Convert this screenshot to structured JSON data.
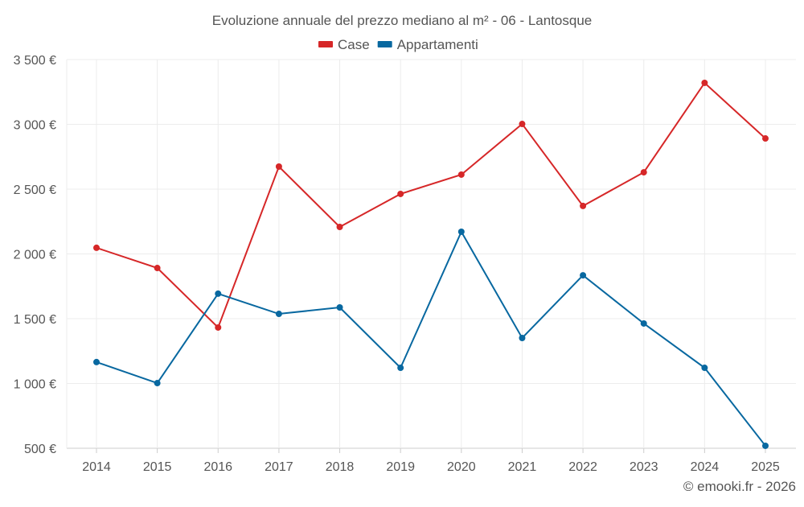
{
  "chart_data": {
    "type": "line",
    "title": "Evoluzione annuale del prezzo mediano al m² - 06 - Lantosque",
    "xlabel": "",
    "ylabel": "",
    "categories": [
      "2014",
      "2015",
      "2016",
      "2017",
      "2018",
      "2019",
      "2020",
      "2021",
      "2022",
      "2023",
      "2024",
      "2025"
    ],
    "ylim": [
      500,
      3500
    ],
    "yticks": [
      500,
      1000,
      1500,
      2000,
      2500,
      3000,
      3500
    ],
    "ytick_labels": [
      "500 €",
      "1 000 €",
      "1 500 €",
      "2 000 €",
      "2 500 €",
      "3 000 €",
      "3 500 €"
    ],
    "grid": true,
    "legend_position": "top-center",
    "series": [
      {
        "name": "Case",
        "color": "#d62728",
        "values": [
          2047,
          1891,
          1432,
          2674,
          2208,
          2463,
          2612,
          3003,
          2370,
          2630,
          3320,
          2891
        ]
      },
      {
        "name": "Appartamenti",
        "color": "#0868a0",
        "values": [
          1165,
          1003,
          1693,
          1537,
          1587,
          1121,
          2171,
          1351,
          1835,
          1463,
          1121,
          519
        ]
      }
    ],
    "credit": "© emooki.fr - 2026"
  }
}
